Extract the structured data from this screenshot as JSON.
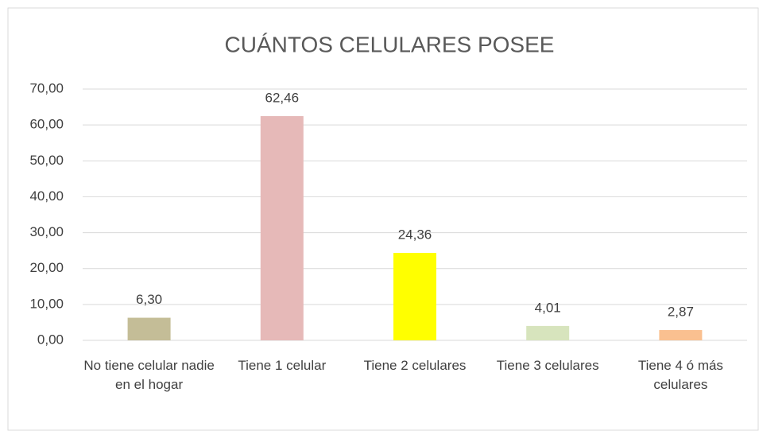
{
  "chart_data": {
    "type": "bar",
    "title": "CUÁNTOS CELULARES POSEE",
    "categories": [
      "No tiene celular nadie en el hogar",
      "Tiene 1 celular",
      "Tiene 2 celulares",
      "Tiene 3 celulares",
      "Tiene 4 ó más celulares"
    ],
    "values": [
      6.3,
      62.46,
      24.36,
      4.01,
      2.87
    ],
    "value_labels": [
      "6,30",
      "62,46",
      "24,36",
      "4,01",
      "2,87"
    ],
    "colors": [
      "#c4bd97",
      "#e6b9b8",
      "#ffff00",
      "#d7e4bd",
      "#fac090"
    ],
    "ylim": [
      0,
      70
    ],
    "yticks": [
      {
        "value": 0,
        "label": "0,00"
      },
      {
        "value": 10,
        "label": "10,00"
      },
      {
        "value": 20,
        "label": "20,00"
      },
      {
        "value": 30,
        "label": "30,00"
      },
      {
        "value": 40,
        "label": "40,00"
      },
      {
        "value": 50,
        "label": "50,00"
      },
      {
        "value": 60,
        "label": "60,00"
      },
      {
        "value": 70,
        "label": "70,00"
      }
    ],
    "grid": true
  }
}
